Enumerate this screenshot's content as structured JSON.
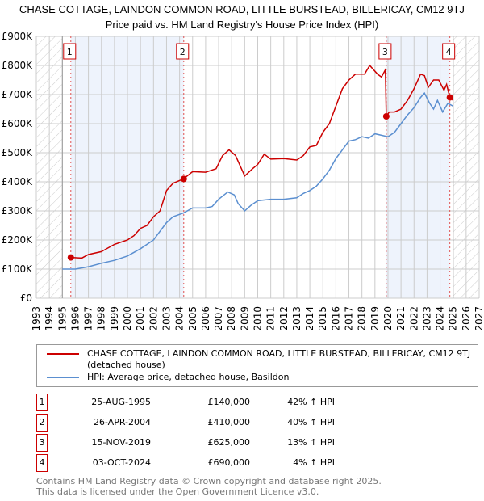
{
  "chart_data": {
    "type": "line",
    "title": "CHASE COTTAGE, LAINDON COMMON ROAD, LITTLE BURSTEAD, BILLERICAY, CM12 9TJ",
    "subtitle": "Price paid vs. HM Land Registry's House Price Index (HPI)",
    "xlim": [
      1993,
      2027
    ],
    "ylim": [
      0,
      900000
    ],
    "x_ticks": [
      "1993",
      "1994",
      "1995",
      "1996",
      "1997",
      "1998",
      "1999",
      "2000",
      "2001",
      "2002",
      "2003",
      "2004",
      "2005",
      "2006",
      "2007",
      "2008",
      "2009",
      "2010",
      "2011",
      "2012",
      "2013",
      "2014",
      "2015",
      "2016",
      "2017",
      "2018",
      "2019",
      "2020",
      "2021",
      "2022",
      "2023",
      "2024",
      "2025",
      "2026",
      "2027"
    ],
    "y_ticks": [
      {
        "v": 0,
        "l": "£0"
      },
      {
        "v": 100000,
        "l": "£100K"
      },
      {
        "v": 200000,
        "l": "£200K"
      },
      {
        "v": 300000,
        "l": "£300K"
      },
      {
        "v": 400000,
        "l": "£400K"
      },
      {
        "v": 500000,
        "l": "£500K"
      },
      {
        "v": 600000,
        "l": "£600K"
      },
      {
        "v": 700000,
        "l": "£700K"
      },
      {
        "v": 800000,
        "l": "£800K"
      },
      {
        "v": 900000,
        "l": "£900K"
      }
    ],
    "series": [
      {
        "name": "CHASE COTTAGE, LAINDON COMMON ROAD, LITTLE BURSTEAD, BILLERICAY, CM12 9TJ (detached house)",
        "color": "#cc0000",
        "points": [
          [
            1995.65,
            140000
          ],
          [
            1996.5,
            138000
          ],
          [
            1997,
            150000
          ],
          [
            1998,
            160000
          ],
          [
            1999,
            185000
          ],
          [
            2000,
            200000
          ],
          [
            2000.5,
            215000
          ],
          [
            2001,
            240000
          ],
          [
            2001.5,
            250000
          ],
          [
            2002,
            280000
          ],
          [
            2002.5,
            300000
          ],
          [
            2003,
            370000
          ],
          [
            2003.5,
            395000
          ],
          [
            2004.3,
            410000
          ],
          [
            2005,
            435000
          ],
          [
            2006,
            433000
          ],
          [
            2006.8,
            445000
          ],
          [
            2007.3,
            490000
          ],
          [
            2007.8,
            510000
          ],
          [
            2008.3,
            490000
          ],
          [
            2009,
            420000
          ],
          [
            2009.6,
            445000
          ],
          [
            2010,
            460000
          ],
          [
            2010.5,
            495000
          ],
          [
            2011,
            478000
          ],
          [
            2012,
            480000
          ],
          [
            2013,
            475000
          ],
          [
            2013.5,
            490000
          ],
          [
            2014,
            520000
          ],
          [
            2014.5,
            525000
          ],
          [
            2015,
            570000
          ],
          [
            2015.5,
            600000
          ],
          [
            2016,
            660000
          ],
          [
            2016.5,
            720000
          ],
          [
            2017,
            750000
          ],
          [
            2017.5,
            770000
          ],
          [
            2018.2,
            770000
          ],
          [
            2018.6,
            800000
          ],
          [
            2019.2,
            770000
          ],
          [
            2019.5,
            760000
          ],
          [
            2019.8,
            785000
          ],
          [
            2019.87,
            625000
          ],
          [
            2020.1,
            640000
          ],
          [
            2020.5,
            640000
          ],
          [
            2021,
            650000
          ],
          [
            2021.5,
            680000
          ],
          [
            2022,
            720000
          ],
          [
            2022.5,
            770000
          ],
          [
            2022.8,
            765000
          ],
          [
            2023.1,
            725000
          ],
          [
            2023.5,
            750000
          ],
          [
            2023.9,
            750000
          ],
          [
            2024.3,
            715000
          ],
          [
            2024.5,
            735000
          ],
          [
            2024.75,
            690000
          ],
          [
            2025,
            680000
          ]
        ]
      },
      {
        "name": "HPI: Average price, detached house, Basildon",
        "color": "#5b8fd0",
        "points": [
          [
            1995,
            100000
          ],
          [
            1996,
            100000
          ],
          [
            1997,
            108000
          ],
          [
            1998,
            120000
          ],
          [
            1999,
            130000
          ],
          [
            2000,
            145000
          ],
          [
            2001,
            170000
          ],
          [
            2002,
            200000
          ],
          [
            2002.5,
            230000
          ],
          [
            2003,
            260000
          ],
          [
            2003.5,
            280000
          ],
          [
            2004.3,
            293000
          ],
          [
            2005,
            310000
          ],
          [
            2006,
            310000
          ],
          [
            2006.5,
            315000
          ],
          [
            2007,
            340000
          ],
          [
            2007.7,
            365000
          ],
          [
            2008.2,
            355000
          ],
          [
            2008.5,
            325000
          ],
          [
            2009,
            300000
          ],
          [
            2009.5,
            320000
          ],
          [
            2010,
            335000
          ],
          [
            2011,
            340000
          ],
          [
            2012,
            340000
          ],
          [
            2013,
            345000
          ],
          [
            2013.5,
            360000
          ],
          [
            2014,
            370000
          ],
          [
            2014.5,
            385000
          ],
          [
            2015,
            410000
          ],
          [
            2015.5,
            440000
          ],
          [
            2016,
            480000
          ],
          [
            2016.5,
            510000
          ],
          [
            2017,
            540000
          ],
          [
            2017.5,
            545000
          ],
          [
            2018,
            555000
          ],
          [
            2018.5,
            550000
          ],
          [
            2019,
            565000
          ],
          [
            2019.5,
            560000
          ],
          [
            2020,
            555000
          ],
          [
            2020.5,
            570000
          ],
          [
            2021,
            600000
          ],
          [
            2021.5,
            630000
          ],
          [
            2022,
            655000
          ],
          [
            2022.5,
            690000
          ],
          [
            2022.8,
            705000
          ],
          [
            2023.2,
            670000
          ],
          [
            2023.5,
            650000
          ],
          [
            2023.8,
            680000
          ],
          [
            2024.2,
            640000
          ],
          [
            2024.6,
            670000
          ],
          [
            2025,
            660000
          ]
        ]
      }
    ],
    "sales": [
      {
        "n": "1",
        "date": "25-AUG-1995",
        "x": 1995.65,
        "price": "£140,000",
        "v": 140000,
        "hpi": "42% ↑ HPI"
      },
      {
        "n": "2",
        "date": "26-APR-2004",
        "x": 2004.32,
        "price": "£410,000",
        "v": 410000,
        "hpi": "40% ↑ HPI"
      },
      {
        "n": "3",
        "date": "15-NOV-2019",
        "x": 2019.87,
        "price": "£625,000",
        "v": 625000,
        "hpi": "13% ↑ HPI"
      },
      {
        "n": "4",
        "date": "03-OCT-2024",
        "x": 2024.75,
        "price": "£690,000",
        "v": 690000,
        "hpi": "4% ↑ HPI"
      }
    ],
    "data_range": [
      1995,
      2025
    ]
  },
  "footer": {
    "line1": "Contains HM Land Registry data © Crown copyright and database right 2025.",
    "line2": "This data is licensed under the Open Government Licence v3.0."
  }
}
